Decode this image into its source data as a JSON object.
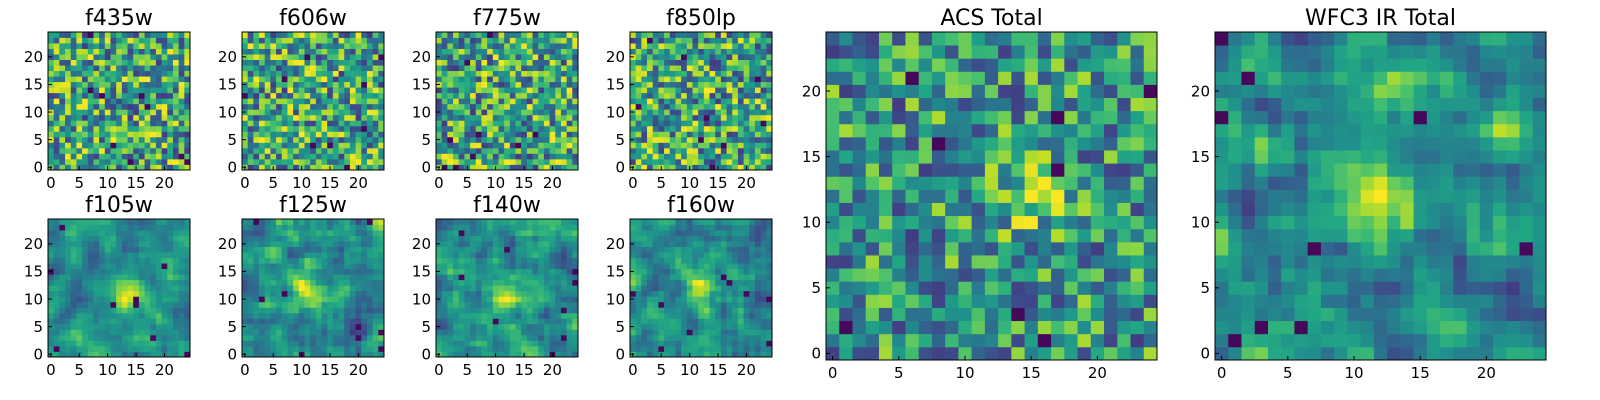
{
  "figure": {
    "background": "#ffffff",
    "colormap": "viridis"
  },
  "chart_data": [
    {
      "type": "heatmap",
      "title": "f435w",
      "grid": [
        25,
        25
      ],
      "xticks": [
        0,
        5,
        10,
        15,
        20
      ],
      "yticks": [
        0,
        5,
        10,
        15,
        20
      ],
      "xlim": [
        -0.5,
        24.5
      ],
      "ylim": [
        -0.5,
        24.5
      ],
      "texture": "white-noise"
    },
    {
      "type": "heatmap",
      "title": "f606w",
      "grid": [
        25,
        25
      ],
      "xticks": [
        0,
        5,
        10,
        15,
        20
      ],
      "yticks": [
        0,
        5,
        10,
        15,
        20
      ],
      "xlim": [
        -0.5,
        24.5
      ],
      "ylim": [
        -0.5,
        24.5
      ],
      "texture": "white-noise"
    },
    {
      "type": "heatmap",
      "title": "f775w",
      "grid": [
        25,
        25
      ],
      "xticks": [
        0,
        5,
        10,
        15,
        20
      ],
      "yticks": [
        0,
        5,
        10,
        15,
        20
      ],
      "xlim": [
        -0.5,
        24.5
      ],
      "ylim": [
        -0.5,
        24.5
      ],
      "texture": "white-noise"
    },
    {
      "type": "heatmap",
      "title": "f850lp",
      "grid": [
        25,
        25
      ],
      "xticks": [
        0,
        5,
        10,
        15,
        20
      ],
      "yticks": [
        0,
        5,
        10,
        15,
        20
      ],
      "xlim": [
        -0.5,
        24.5
      ],
      "ylim": [
        -0.5,
        24.5
      ],
      "texture": "white-noise"
    },
    {
      "type": "heatmap",
      "title": "f105w",
      "grid": [
        25,
        25
      ],
      "xticks": [
        0,
        5,
        10,
        15,
        20
      ],
      "yticks": [
        0,
        5,
        10,
        15,
        20
      ],
      "xlim": [
        -0.5,
        24.5
      ],
      "ylim": [
        -0.5,
        24.5
      ],
      "texture": "correlated-noise",
      "bright_center": [
        14,
        11
      ]
    },
    {
      "type": "heatmap",
      "title": "f125w",
      "grid": [
        25,
        25
      ],
      "xticks": [
        0,
        5,
        10,
        15,
        20
      ],
      "yticks": [
        0,
        5,
        10,
        15,
        20
      ],
      "xlim": [
        -0.5,
        24.5
      ],
      "ylim": [
        -0.5,
        24.5
      ],
      "texture": "correlated-noise",
      "bright_center": [
        11,
        12
      ]
    },
    {
      "type": "heatmap",
      "title": "f140w",
      "grid": [
        25,
        25
      ],
      "xticks": [
        0,
        5,
        10,
        15,
        20
      ],
      "yticks": [
        0,
        5,
        10,
        15,
        20
      ],
      "xlim": [
        -0.5,
        24.5
      ],
      "ylim": [
        -0.5,
        24.5
      ],
      "texture": "correlated-noise",
      "bright_center": [
        12,
        10
      ]
    },
    {
      "type": "heatmap",
      "title": "f160w",
      "grid": [
        25,
        25
      ],
      "xticks": [
        0,
        5,
        10,
        15,
        20
      ],
      "yticks": [
        0,
        5,
        10,
        15,
        20
      ],
      "xlim": [
        -0.5,
        24.5
      ],
      "ylim": [
        -0.5,
        24.5
      ],
      "texture": "correlated-noise",
      "bright_center": [
        12,
        12
      ]
    },
    {
      "type": "heatmap",
      "title": "ACS Total",
      "grid": [
        25,
        25
      ],
      "xticks": [
        0,
        5,
        10,
        15,
        20
      ],
      "yticks": [
        0,
        5,
        10,
        15,
        20
      ],
      "xlim": [
        -0.5,
        24.5
      ],
      "ylim": [
        -0.5,
        24.5
      ],
      "texture": "white-noise",
      "bright_center": [
        15,
        12
      ]
    },
    {
      "type": "heatmap",
      "title": "WFC3 IR Total",
      "grid": [
        25,
        25
      ],
      "xticks": [
        0,
        5,
        10,
        15,
        20
      ],
      "yticks": [
        0,
        5,
        10,
        15,
        20
      ],
      "xlim": [
        -0.5,
        24.5
      ],
      "ylim": [
        -0.5,
        24.5
      ],
      "texture": "correlated-noise",
      "bright_center": [
        11,
        12
      ]
    }
  ]
}
